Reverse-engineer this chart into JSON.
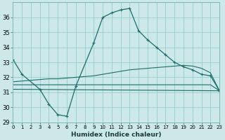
{
  "bg_color": "#cce8e8",
  "grid_color": "#99cccc",
  "line_color": "#1a6e6a",
  "xlabel": "Humidex (Indice chaleur)",
  "xlim": [
    0,
    23
  ],
  "ylim": [
    29,
    37
  ],
  "yticks": [
    29,
    30,
    31,
    32,
    33,
    34,
    35,
    36
  ],
  "xticks": [
    0,
    1,
    2,
    3,
    4,
    5,
    6,
    7,
    8,
    9,
    10,
    11,
    12,
    13,
    14,
    15,
    16,
    17,
    18,
    19,
    20,
    21,
    22,
    23
  ],
  "series1_x": [
    0,
    1,
    3,
    4,
    5,
    6,
    7,
    9,
    10,
    11,
    12,
    13,
    14,
    15,
    16,
    17,
    18,
    19,
    20,
    21,
    22,
    23
  ],
  "series1_y": [
    33.2,
    32.2,
    31.2,
    30.2,
    29.5,
    29.4,
    31.4,
    34.3,
    36.0,
    36.3,
    36.5,
    36.6,
    35.1,
    34.5,
    34.0,
    33.5,
    33.0,
    32.7,
    32.5,
    32.2,
    32.1,
    31.1
  ],
  "series2_x": [
    0,
    23
  ],
  "series2_y": [
    31.2,
    31.1
  ],
  "series3_x": [
    0,
    1,
    2,
    3,
    4,
    5,
    6,
    7,
    8,
    9,
    10,
    11,
    12,
    13,
    14,
    15,
    16,
    17,
    18,
    19,
    20,
    21,
    22,
    23
  ],
  "series3_y": [
    31.5,
    31.5,
    31.5,
    31.5,
    31.5,
    31.5,
    31.5,
    31.5,
    31.5,
    31.5,
    31.5,
    31.5,
    31.5,
    31.5,
    31.5,
    31.5,
    31.5,
    31.5,
    31.5,
    31.5,
    31.5,
    31.5,
    31.5,
    31.1
  ],
  "series4_x": [
    0,
    1,
    2,
    3,
    4,
    5,
    6,
    7,
    8,
    9,
    10,
    11,
    12,
    13,
    14,
    15,
    16,
    17,
    18,
    19,
    20,
    21,
    22,
    23
  ],
  "series4_y": [
    31.7,
    31.75,
    31.8,
    31.85,
    31.9,
    31.9,
    31.95,
    32.0,
    32.05,
    32.1,
    32.2,
    32.3,
    32.4,
    32.5,
    32.55,
    32.6,
    32.65,
    32.7,
    32.75,
    32.8,
    32.75,
    32.6,
    32.3,
    31.1
  ]
}
